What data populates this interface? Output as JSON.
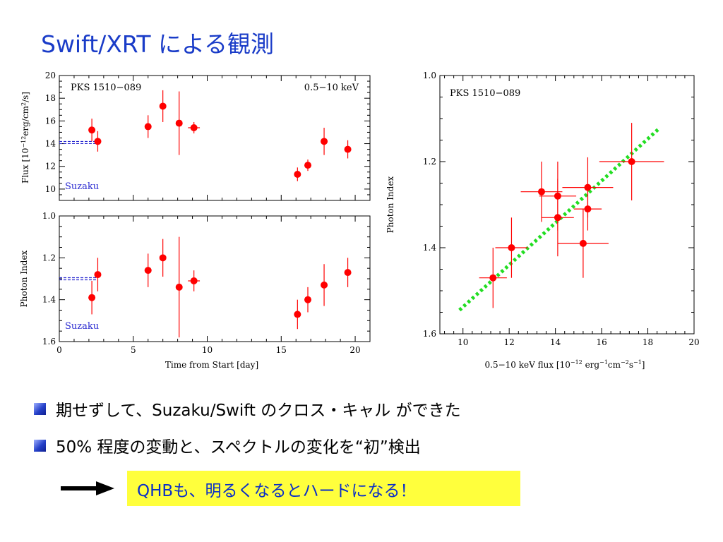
{
  "slide": {
    "title": "Swift/XRT による観測",
    "bullets": [
      "期せずして、Suzaku/Swift のクロス・キャル ができた",
      "50% 程度の変動と、スペクトルの変化を“初”検出"
    ],
    "conclusion": "QHBも、明るくなるとハードになる！",
    "colors": {
      "title": "#1a3cc8",
      "conclusion_bg": "#ffff3c",
      "conclusion_text": "#0a2ec8",
      "marker": "#ff0000",
      "suzaku": "#2a2ad0",
      "fit_line": "#22dd22"
    }
  },
  "chart_data": [
    {
      "type": "scatter",
      "id": "flux_vs_time",
      "ylabel": "Flux [10^-12 erg/cm^2/s]",
      "ylabel_parts": {
        "pre": "Flux [10",
        "exp": "−12",
        "mid": "erg/cm",
        "exp2": "2",
        "post": "/s]"
      },
      "xlim": [
        0,
        21
      ],
      "ylim": [
        9,
        20
      ],
      "yticks": [
        10,
        12,
        14,
        16,
        18,
        20
      ],
      "annotations": {
        "source": "PKS 1510−089",
        "band": "0.5−10 keV",
        "suzaku_label": "Suzaku"
      },
      "suzaku_level": 14.1,
      "points": [
        {
          "x": 2.2,
          "y": 15.2,
          "yerr": 1.0
        },
        {
          "x": 2.6,
          "y": 14.2,
          "yerr": 0.9
        },
        {
          "x": 6.0,
          "y": 15.5,
          "yerr": 1.0
        },
        {
          "x": 7.0,
          "y": 17.3,
          "yerr": 1.4
        },
        {
          "x": 8.1,
          "y": 15.8,
          "yerr": 2.8,
          "xerr": 0.15
        },
        {
          "x": 9.1,
          "y": 15.4,
          "yerr": 0.5,
          "xerr": 0.4
        },
        {
          "x": 16.1,
          "y": 11.3,
          "yerr": 0.6
        },
        {
          "x": 16.8,
          "y": 12.1,
          "yerr": 0.5
        },
        {
          "x": 17.9,
          "y": 14.2,
          "yerr": 1.2
        },
        {
          "x": 19.5,
          "y": 13.5,
          "yerr": 0.8
        }
      ]
    },
    {
      "type": "scatter",
      "id": "index_vs_time",
      "xlabel": "Time from Start [day]",
      "ylabel": "Photon Index",
      "xlim": [
        0,
        21
      ],
      "ylim": [
        1.0,
        1.6
      ],
      "xticks": [
        0,
        5,
        10,
        15,
        20
      ],
      "yticks": [
        1.0,
        1.2,
        1.4,
        1.6
      ],
      "y_inverted": true,
      "annotations": {
        "suzaku_label": "Suzaku"
      },
      "suzaku_level": 1.3,
      "points": [
        {
          "x": 2.2,
          "y": 1.39,
          "yerr": 0.08
        },
        {
          "x": 2.6,
          "y": 1.28,
          "yerr": 0.08
        },
        {
          "x": 6.0,
          "y": 1.26,
          "yerr": 0.08
        },
        {
          "x": 7.0,
          "y": 1.2,
          "yerr": 0.09
        },
        {
          "x": 8.1,
          "y": 1.34,
          "yerr": 0.24,
          "xerr": 0.15
        },
        {
          "x": 9.1,
          "y": 1.31,
          "yerr": 0.05,
          "xerr": 0.4
        },
        {
          "x": 16.1,
          "y": 1.47,
          "yerr": 0.07
        },
        {
          "x": 16.8,
          "y": 1.4,
          "yerr": 0.06
        },
        {
          "x": 17.9,
          "y": 1.33,
          "yerr": 0.1
        },
        {
          "x": 19.5,
          "y": 1.27,
          "yerr": 0.07
        }
      ]
    },
    {
      "type": "scatter",
      "id": "index_vs_flux",
      "xlabel": "0.5−10 keV flux [10^-12 erg^-1 cm^-2 s^-1]",
      "xlabel_parts": {
        "pre": "0.5−10 keV flux [10",
        "e1": "−12",
        "m1": " erg",
        "e2": "−1",
        "m2": "cm",
        "e3": "−2",
        "m3": "s",
        "e4": "−1",
        "post": "]"
      },
      "ylabel": "Photon Index",
      "xlim": [
        9,
        20
      ],
      "ylim": [
        1.0,
        1.6
      ],
      "xticks": [
        10,
        12,
        14,
        16,
        18,
        20
      ],
      "yticks": [
        1.0,
        1.2,
        1.4,
        1.6
      ],
      "y_inverted": true,
      "annotations": {
        "source": "PKS 1510−089"
      },
      "fit_line": {
        "x": [
          9.85,
          18.45
        ],
        "y": [
          1.545,
          1.125
        ]
      },
      "points": [
        {
          "x": 11.3,
          "y": 1.47,
          "xerr": 0.6,
          "yerr": 0.07
        },
        {
          "x": 12.1,
          "y": 1.4,
          "xerr": 0.7,
          "yerr": 0.07
        },
        {
          "x": 13.4,
          "y": 1.27,
          "xerr": 0.9,
          "yerr": 0.07
        },
        {
          "x": 14.1,
          "y": 1.28,
          "xerr": 0.8,
          "yerr": 0.08
        },
        {
          "x": 14.1,
          "y": 1.33,
          "xerr": 0.7,
          "yerr": 0.09
        },
        {
          "x": 15.2,
          "y": 1.39,
          "xerr": 1.1,
          "yerr": 0.08
        },
        {
          "x": 15.4,
          "y": 1.26,
          "xerr": 1.1,
          "yerr": 0.07
        },
        {
          "x": 15.4,
          "y": 1.31,
          "xerr": 0.6,
          "yerr": 0.05
        },
        {
          "x": 17.3,
          "y": 1.2,
          "xerr": 1.4,
          "yerr": 0.09
        }
      ]
    }
  ]
}
